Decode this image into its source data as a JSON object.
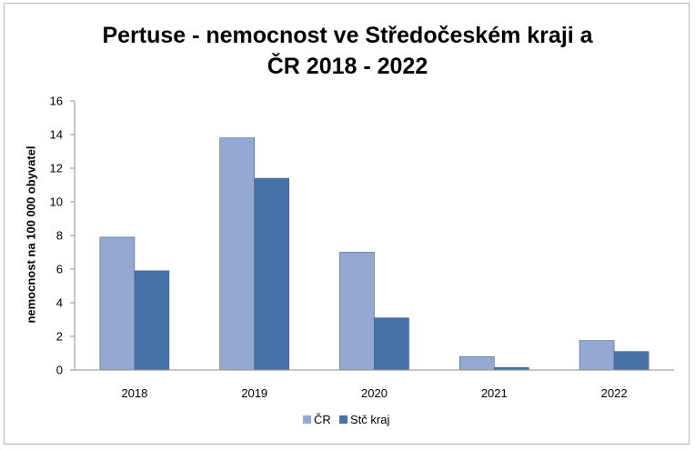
{
  "chart_data": {
    "type": "bar",
    "title_line1": "Pertuse - nemocnost ve Středočeském kraji a",
    "title_line2": "ČR 2018 - 2022",
    "xlabel": "",
    "ylabel": "nemocnost na 100 000 obyvatel",
    "ylim": [
      0,
      16
    ],
    "yticks": [
      "0",
      "2",
      "4",
      "6",
      "8",
      "10",
      "12",
      "14",
      "16"
    ],
    "categories": [
      "2018",
      "2019",
      "2020",
      "2021",
      "2022"
    ],
    "series": [
      {
        "name": "ČR",
        "color": "#94a8d2",
        "values": [
          7.9,
          13.8,
          7.0,
          0.8,
          1.75
        ]
      },
      {
        "name": "Stč kraj",
        "color": "#4772a8",
        "values": [
          5.9,
          11.4,
          3.1,
          0.15,
          1.1
        ]
      }
    ],
    "grid": false,
    "legend_position": "bottom"
  }
}
